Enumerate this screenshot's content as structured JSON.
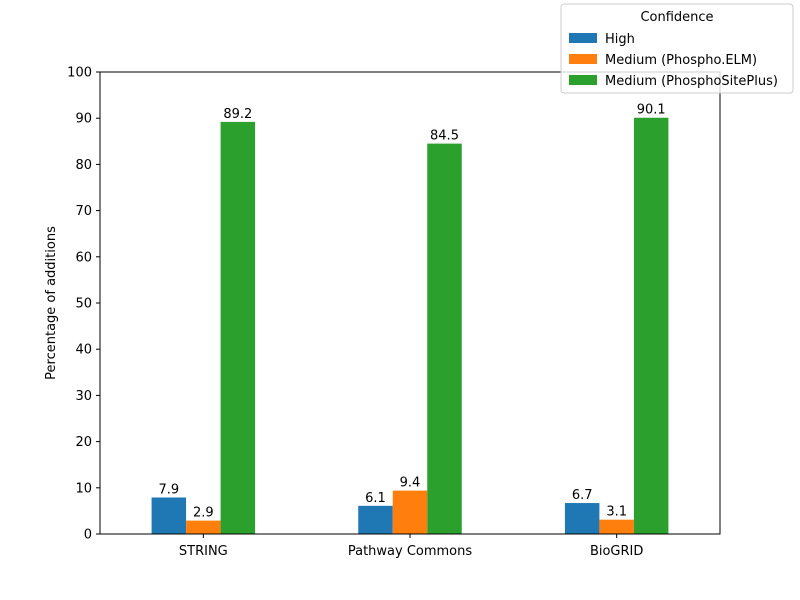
{
  "chart_data": {
    "type": "bar",
    "categories": [
      "STRING",
      "Pathway Commons",
      "BioGRID"
    ],
    "series": [
      {
        "name": "High",
        "values": [
          7.9,
          6.1,
          6.7
        ],
        "color": "#1f77b4"
      },
      {
        "name": "Medium (Phospho.ELM)",
        "values": [
          2.9,
          9.4,
          3.1
        ],
        "color": "#ff7f0e"
      },
      {
        "name": "Medium (PhosphoSitePlus)",
        "values": [
          89.2,
          84.5,
          90.1
        ],
        "color": "#2ca02c"
      }
    ],
    "ylabel": "Percentage of additions",
    "ylim": [
      0,
      100
    ],
    "yticks": [
      0,
      10,
      20,
      30,
      40,
      50,
      60,
      70,
      80,
      90,
      100
    ],
    "legend": {
      "title": "Confidence",
      "placement": "top-right"
    },
    "grid": false
  }
}
